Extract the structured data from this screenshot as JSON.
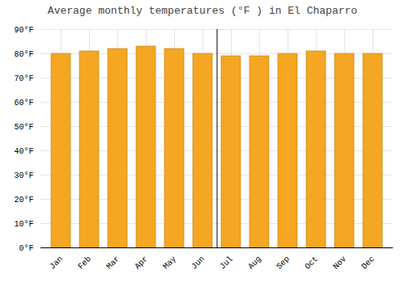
{
  "chart_data": {
    "type": "bar",
    "title": "Average monthly temperatures (°F ) in El Chaparro",
    "categories": [
      "Jan",
      "Feb",
      "Mar",
      "Apr",
      "May",
      "Jun",
      "Jul",
      "Aug",
      "Sep",
      "Oct",
      "Nov",
      "Dec"
    ],
    "values": [
      80,
      81,
      82,
      83,
      82,
      80,
      79,
      79,
      80,
      81,
      80,
      80
    ],
    "color": "#F5A623",
    "ylim": [
      0,
      90
    ],
    "yticks": [
      {
        "value": 0,
        "label": "0°F"
      },
      {
        "value": 10,
        "label": "10°F"
      },
      {
        "value": 20,
        "label": "20°F"
      },
      {
        "value": 30,
        "label": "30°F"
      },
      {
        "value": 40,
        "label": "40°F"
      },
      {
        "value": 50,
        "label": "50°F"
      },
      {
        "value": 60,
        "label": "60°F"
      },
      {
        "value": 70,
        "label": "70°F"
      },
      {
        "value": 80,
        "label": "80°F"
      },
      {
        "value": 90,
        "label": "90°F"
      }
    ],
    "grid": true
  }
}
